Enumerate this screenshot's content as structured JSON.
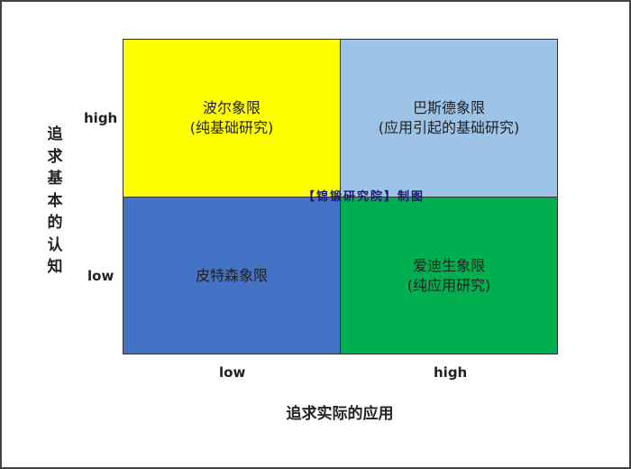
{
  "quadrants": {
    "top_left": {
      "title": "波尔象限",
      "subtitle": "(纯基础研究)",
      "color": "#ffff00"
    },
    "top_right": {
      "title": "巴斯德象限",
      "subtitle": "(应用引起的基础研究)",
      "color": "#9dc3e6"
    },
    "bottom_left": {
      "title": "皮特森象限",
      "color": "#4472c4"
    },
    "bottom_right": {
      "title": "爱迪生象限",
      "subtitle": "(纯应用研究)",
      "color": "#00b050"
    }
  },
  "y_axis": {
    "label": "追求基本的认知",
    "high": "high",
    "low": "low"
  },
  "x_axis": {
    "label": "追求实际的应用",
    "low": "low",
    "high": "high"
  },
  "watermark": "【锦锻研究院】制图"
}
